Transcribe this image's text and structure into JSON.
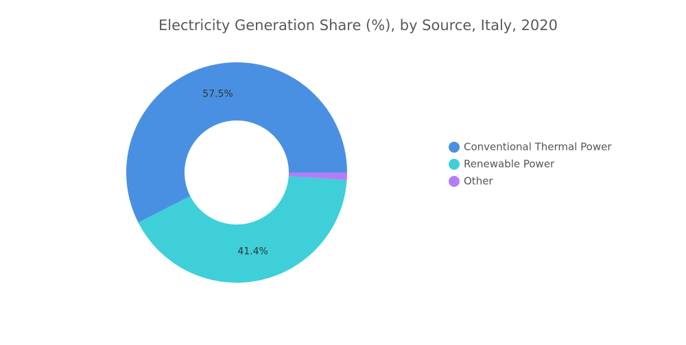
{
  "chart_data": {
    "type": "donut",
    "title": "Electricity Generation Share (%), by Source, Italy, 2020",
    "categories": [
      "Conventional Thermal Power",
      "Renewable Power",
      "Other"
    ],
    "values": [
      57.5,
      41.4,
      1.1
    ],
    "value_labels": [
      "57.5%",
      "41.4%",
      null
    ],
    "colors": [
      "#4a90e2",
      "#3ecfd9",
      "#b47df5"
    ],
    "legend": "right"
  }
}
